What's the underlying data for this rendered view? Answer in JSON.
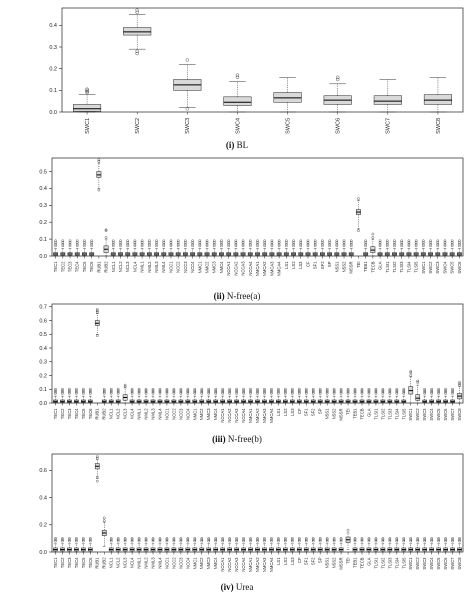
{
  "chart_data": [
    {
      "type": "box",
      "panel_id": "(i)",
      "panel_name": "BL",
      "ylim": [
        0,
        0.48
      ],
      "yticks": [
        "0.0",
        "0.1",
        "0.2",
        "0.3",
        "0.4"
      ],
      "ytick_values": [
        0.0,
        0.1,
        0.2,
        0.3,
        0.4
      ],
      "categories": [
        "SWC1",
        "SWC2",
        "SWC3",
        "SWC4",
        "SWC5",
        "SWC6",
        "SWC7",
        "SWC8"
      ],
      "boxes": [
        {
          "min": 0.0,
          "q1": 0.003,
          "median": 0.015,
          "q3": 0.035,
          "max": 0.08,
          "outliers": [
            0.09,
            0.095,
            0.1,
            0.105
          ]
        },
        {
          "min": 0.29,
          "q1": 0.355,
          "median": 0.37,
          "q3": 0.39,
          "max": 0.45,
          "outliers": [
            0.27,
            0.28,
            0.46,
            0.47
          ]
        },
        {
          "min": 0.02,
          "q1": 0.1,
          "median": 0.125,
          "q3": 0.15,
          "max": 0.22,
          "outliers": [
            0.015,
            0.24
          ]
        },
        {
          "min": 0.0,
          "q1": 0.03,
          "median": 0.045,
          "q3": 0.07,
          "max": 0.14,
          "outliers": [
            0.16,
            0.17
          ]
        },
        {
          "min": 0.0,
          "q1": 0.045,
          "median": 0.065,
          "q3": 0.09,
          "max": 0.16,
          "outliers": []
        },
        {
          "min": 0.0,
          "q1": 0.035,
          "median": 0.055,
          "q3": 0.075,
          "max": 0.13,
          "outliers": [
            0.15,
            0.16
          ]
        },
        {
          "min": 0.0,
          "q1": 0.035,
          "median": 0.05,
          "q3": 0.075,
          "max": 0.15,
          "outliers": []
        },
        {
          "min": 0.0,
          "q1": 0.035,
          "median": 0.055,
          "q3": 0.08,
          "max": 0.16,
          "outliers": []
        }
      ]
    },
    {
      "type": "box",
      "panel_id": "(ii)",
      "panel_name": "N-free(a)",
      "ylim": [
        0,
        0.58
      ],
      "yticks": [
        "0.0",
        "0.1",
        "0.2",
        "0.3",
        "0.4",
        "0.5"
      ],
      "ytick_values": [
        0.0,
        0.1,
        0.2,
        0.3,
        0.4,
        0.5
      ],
      "categories": [
        "TEC1",
        "TEC2",
        "TEC3",
        "TEC4",
        "TEC5",
        "TEC6",
        "RUB1",
        "RUB2",
        "NCL1",
        "NCL2",
        "NCL3",
        "NCL4",
        "NML1",
        "NML2",
        "NML3",
        "NML4",
        "NCC1",
        "NCC2",
        "NCC3",
        "NCC4",
        "NMC1",
        "NMC2",
        "NMC3",
        "NMC4",
        "NCCA1",
        "NCCA2",
        "NCCA3",
        "NCCA4",
        "NMCA1",
        "NMCA2",
        "NMCA3",
        "NMCA4",
        "LS1",
        "LS2",
        "LS3",
        "CF",
        "SF1",
        "SF2",
        "SP",
        "NSS1",
        "NSS2",
        "MSSR",
        "TEI",
        "TEB1",
        "TECB",
        "GLA",
        "TLSI1",
        "TLSI2",
        "TLSI3",
        "TLSI4",
        "TLSI5",
        "SWC1",
        "SWC2",
        "SWC3",
        "SWC4",
        "SWC5",
        "SWC6"
      ],
      "highlights": [
        {
          "category": "RUB1",
          "min": 0.4,
          "q1": 0.465,
          "median": 0.48,
          "q3": 0.5,
          "max": 0.55,
          "outliers": [
            0.39,
            0.56,
            0.57
          ]
        },
        {
          "category": "TEI",
          "min": 0.16,
          "q1": 0.245,
          "median": 0.26,
          "q3": 0.275,
          "max": 0.33,
          "outliers": [
            0.15,
            0.34
          ]
        },
        {
          "category": "RUB2",
          "min": 0.0,
          "q1": 0.02,
          "median": 0.04,
          "q3": 0.06,
          "max": 0.1,
          "outliers": [
            0.11,
            0.15,
            0.155
          ]
        },
        {
          "category": "TECB",
          "min": 0.0,
          "q1": 0.02,
          "median": 0.035,
          "q3": 0.055,
          "max": 0.1,
          "outliers": [
            0.11,
            0.13
          ]
        }
      ],
      "default_box": {
        "min": 0.0,
        "q1": 0.005,
        "median": 0.012,
        "q3": 0.02,
        "max": 0.045,
        "outliers": [
          0.06,
          0.07,
          0.08,
          0.09
        ]
      }
    },
    {
      "type": "box",
      "panel_id": "(iii)",
      "panel_name": "N-free(b)",
      "ylim": [
        0,
        0.72
      ],
      "yticks": [
        "0.0",
        "0.1",
        "0.2",
        "0.3",
        "0.4",
        "0.5",
        "0.6",
        "0.7"
      ],
      "ytick_values": [
        0.0,
        0.1,
        0.2,
        0.3,
        0.4,
        0.5,
        0.6,
        0.7
      ],
      "categories": [
        "TEC1",
        "TEC2",
        "TEC3",
        "TEC4",
        "TEC5",
        "TEC6",
        "RUB1",
        "RUB2",
        "NCL1",
        "NCL2",
        "NCL3",
        "NCL4",
        "NML1",
        "NML2",
        "NML3",
        "NML4",
        "NCC1",
        "NCC2",
        "NCC3",
        "NCC4",
        "NMC1",
        "NMC2",
        "NMC3",
        "NMC4",
        "NCCA1",
        "NCCA2",
        "NCCA3",
        "NCCA4",
        "NMCA1",
        "NMCA2",
        "NMCA3",
        "NMCA4",
        "LS1",
        "LS2",
        "LS3",
        "CF",
        "SF1",
        "SF2",
        "SP",
        "NSS1",
        "NSS2",
        "MSSR",
        "TEI",
        "TEB1",
        "TECB",
        "GLA",
        "TLSI1",
        "TLSI2",
        "TLSI3",
        "TLSI4",
        "TLSI5",
        "SWC1",
        "SWC2",
        "SWC3",
        "SWC4",
        "SWC5",
        "SWC6",
        "SWC7",
        "SWC8"
      ],
      "highlights": [
        {
          "category": "RUB1",
          "min": 0.5,
          "q1": 0.565,
          "median": 0.58,
          "q3": 0.6,
          "max": 0.65,
          "outliers": [
            0.49,
            0.66,
            0.67,
            0.68
          ]
        },
        {
          "category": "NCL3",
          "min": 0.0,
          "q1": 0.02,
          "median": 0.04,
          "q3": 0.06,
          "max": 0.11,
          "outliers": [
            0.12,
            0.13
          ]
        },
        {
          "category": "SWC1",
          "min": 0.0,
          "q1": 0.065,
          "median": 0.09,
          "q3": 0.12,
          "max": 0.19,
          "outliers": [
            0.2,
            0.22,
            0.23
          ]
        },
        {
          "category": "SWC2",
          "min": 0.0,
          "q1": 0.02,
          "median": 0.035,
          "q3": 0.06,
          "max": 0.13,
          "outliers": [
            0.15,
            0.16
          ]
        },
        {
          "category": "SWC8",
          "min": 0.0,
          "q1": 0.03,
          "median": 0.05,
          "q3": 0.07,
          "max": 0.12,
          "outliers": [
            0.13,
            0.14,
            0.15
          ]
        }
      ],
      "default_box": {
        "min": 0.0,
        "q1": 0.005,
        "median": 0.012,
        "q3": 0.022,
        "max": 0.05,
        "outliers": [
          0.07,
          0.08,
          0.09,
          0.1
        ]
      }
    },
    {
      "type": "box",
      "panel_id": "(iv)",
      "panel_name": "Urea",
      "ylim": [
        0,
        0.72
      ],
      "yticks": [
        "0.0",
        "0.2",
        "0.4",
        "0.6"
      ],
      "ytick_values": [
        0.0,
        0.2,
        0.4,
        0.6
      ],
      "categories": [
        "TEC1",
        "TEC2",
        "TEC3",
        "TEC4",
        "TEC5",
        "TEC6",
        "RUB1",
        "RUB2",
        "NCL1",
        "NCL2",
        "NCL3",
        "NCL4",
        "NML1",
        "NML2",
        "NML3",
        "NML4",
        "NCC1",
        "NCC2",
        "NCC3",
        "NCC4",
        "NMC1",
        "NMC2",
        "NMC3",
        "NMC4",
        "NCCA1",
        "NCCA2",
        "NCCA3",
        "NCCA4",
        "NMCA1",
        "NMCA2",
        "NMCA3",
        "NMCA4",
        "LS1",
        "LS2",
        "LS3",
        "CF",
        "SF1",
        "SF2",
        "SP",
        "NSS1",
        "NSS2",
        "MSSR",
        "TEI",
        "TEB1",
        "TECB",
        "GLA",
        "TLSI1",
        "TLSI2",
        "TLSI3",
        "TLSI4",
        "TLSI5",
        "SWC1",
        "SWC2",
        "SWC3",
        "SWC4",
        "SWC5",
        "SWC6",
        "SWC7",
        "SWC8"
      ],
      "highlights": [
        {
          "category": "RUB1",
          "min": 0.54,
          "q1": 0.61,
          "median": 0.63,
          "q3": 0.65,
          "max": 0.68,
          "outliers": [
            0.52,
            0.55,
            0.69,
            0.7
          ]
        },
        {
          "category": "RUB2",
          "min": 0.04,
          "q1": 0.12,
          "median": 0.14,
          "q3": 0.16,
          "max": 0.22,
          "outliers": [
            0.23,
            0.25
          ]
        },
        {
          "category": "TEI",
          "min": 0.02,
          "q1": 0.07,
          "median": 0.09,
          "q3": 0.11,
          "max": 0.14,
          "outliers": [
            0.16
          ]
        }
      ],
      "default_box": {
        "min": 0.0,
        "q1": 0.008,
        "median": 0.018,
        "q3": 0.03,
        "max": 0.06,
        "outliers": [
          0.08,
          0.09,
          0.1
        ]
      }
    }
  ]
}
